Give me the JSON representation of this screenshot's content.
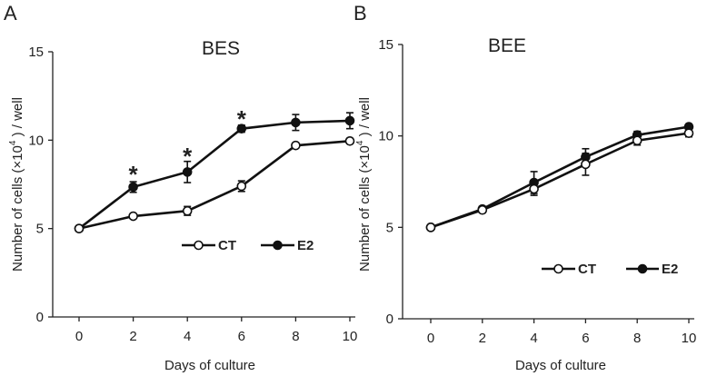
{
  "chart_data": [
    {
      "type": "line",
      "panel_label": "A",
      "title": "BES",
      "xlabel": "Days of culture",
      "ylabel_prefix": "Number of cells (×10",
      "ylabel_exp": "4",
      "ylabel_suffix": " ) / well",
      "x": [
        0,
        2,
        4,
        6,
        8,
        10
      ],
      "x_ticks": [
        "0",
        "2",
        "4",
        "6",
        "8",
        "10"
      ],
      "y_ticks": [
        "0",
        "5",
        "10",
        "15"
      ],
      "xlim": [
        0,
        10
      ],
      "ylim": [
        0,
        15
      ],
      "legend_position": "lower-right",
      "significance_marker": "*",
      "significant_x": [
        2,
        4,
        6
      ],
      "series": [
        {
          "name": "CT",
          "marker": "open-circle",
          "values": [
            5.0,
            5.7,
            6.0,
            7.4,
            9.7,
            9.95
          ],
          "errors": [
            0.0,
            0.12,
            0.25,
            0.3,
            0.12,
            0.15
          ]
        },
        {
          "name": "E2",
          "marker": "filled-circle",
          "values": [
            5.0,
            7.35,
            8.2,
            10.65,
            11.0,
            11.1
          ],
          "errors": [
            0.0,
            0.3,
            0.6,
            0.2,
            0.45,
            0.45
          ]
        }
      ]
    },
    {
      "type": "line",
      "panel_label": "B",
      "title": "BEE",
      "xlabel": "Days of culture",
      "ylabel_prefix": "Number of cells (×10",
      "ylabel_exp": "4",
      "ylabel_suffix": " ) / well",
      "x": [
        0,
        2,
        4,
        6,
        8,
        10
      ],
      "x_ticks": [
        "0",
        "2",
        "4",
        "6",
        "8",
        "10"
      ],
      "y_ticks": [
        "0",
        "5",
        "10",
        "15"
      ],
      "xlim": [
        0,
        10
      ],
      "ylim": [
        0,
        15
      ],
      "legend_position": "lower-right",
      "significance_marker": "*",
      "significant_x": [],
      "series": [
        {
          "name": "CT",
          "marker": "open-circle",
          "values": [
            5.0,
            5.95,
            7.1,
            8.45,
            9.75,
            10.15
          ],
          "errors": [
            0.0,
            0.15,
            0.35,
            0.6,
            0.25,
            0.2
          ]
        },
        {
          "name": "E2",
          "marker": "filled-circle",
          "values": [
            5.0,
            6.0,
            7.45,
            8.85,
            10.05,
            10.5
          ],
          "errors": [
            0.0,
            0.15,
            0.6,
            0.45,
            0.2,
            0.15
          ]
        }
      ]
    }
  ]
}
